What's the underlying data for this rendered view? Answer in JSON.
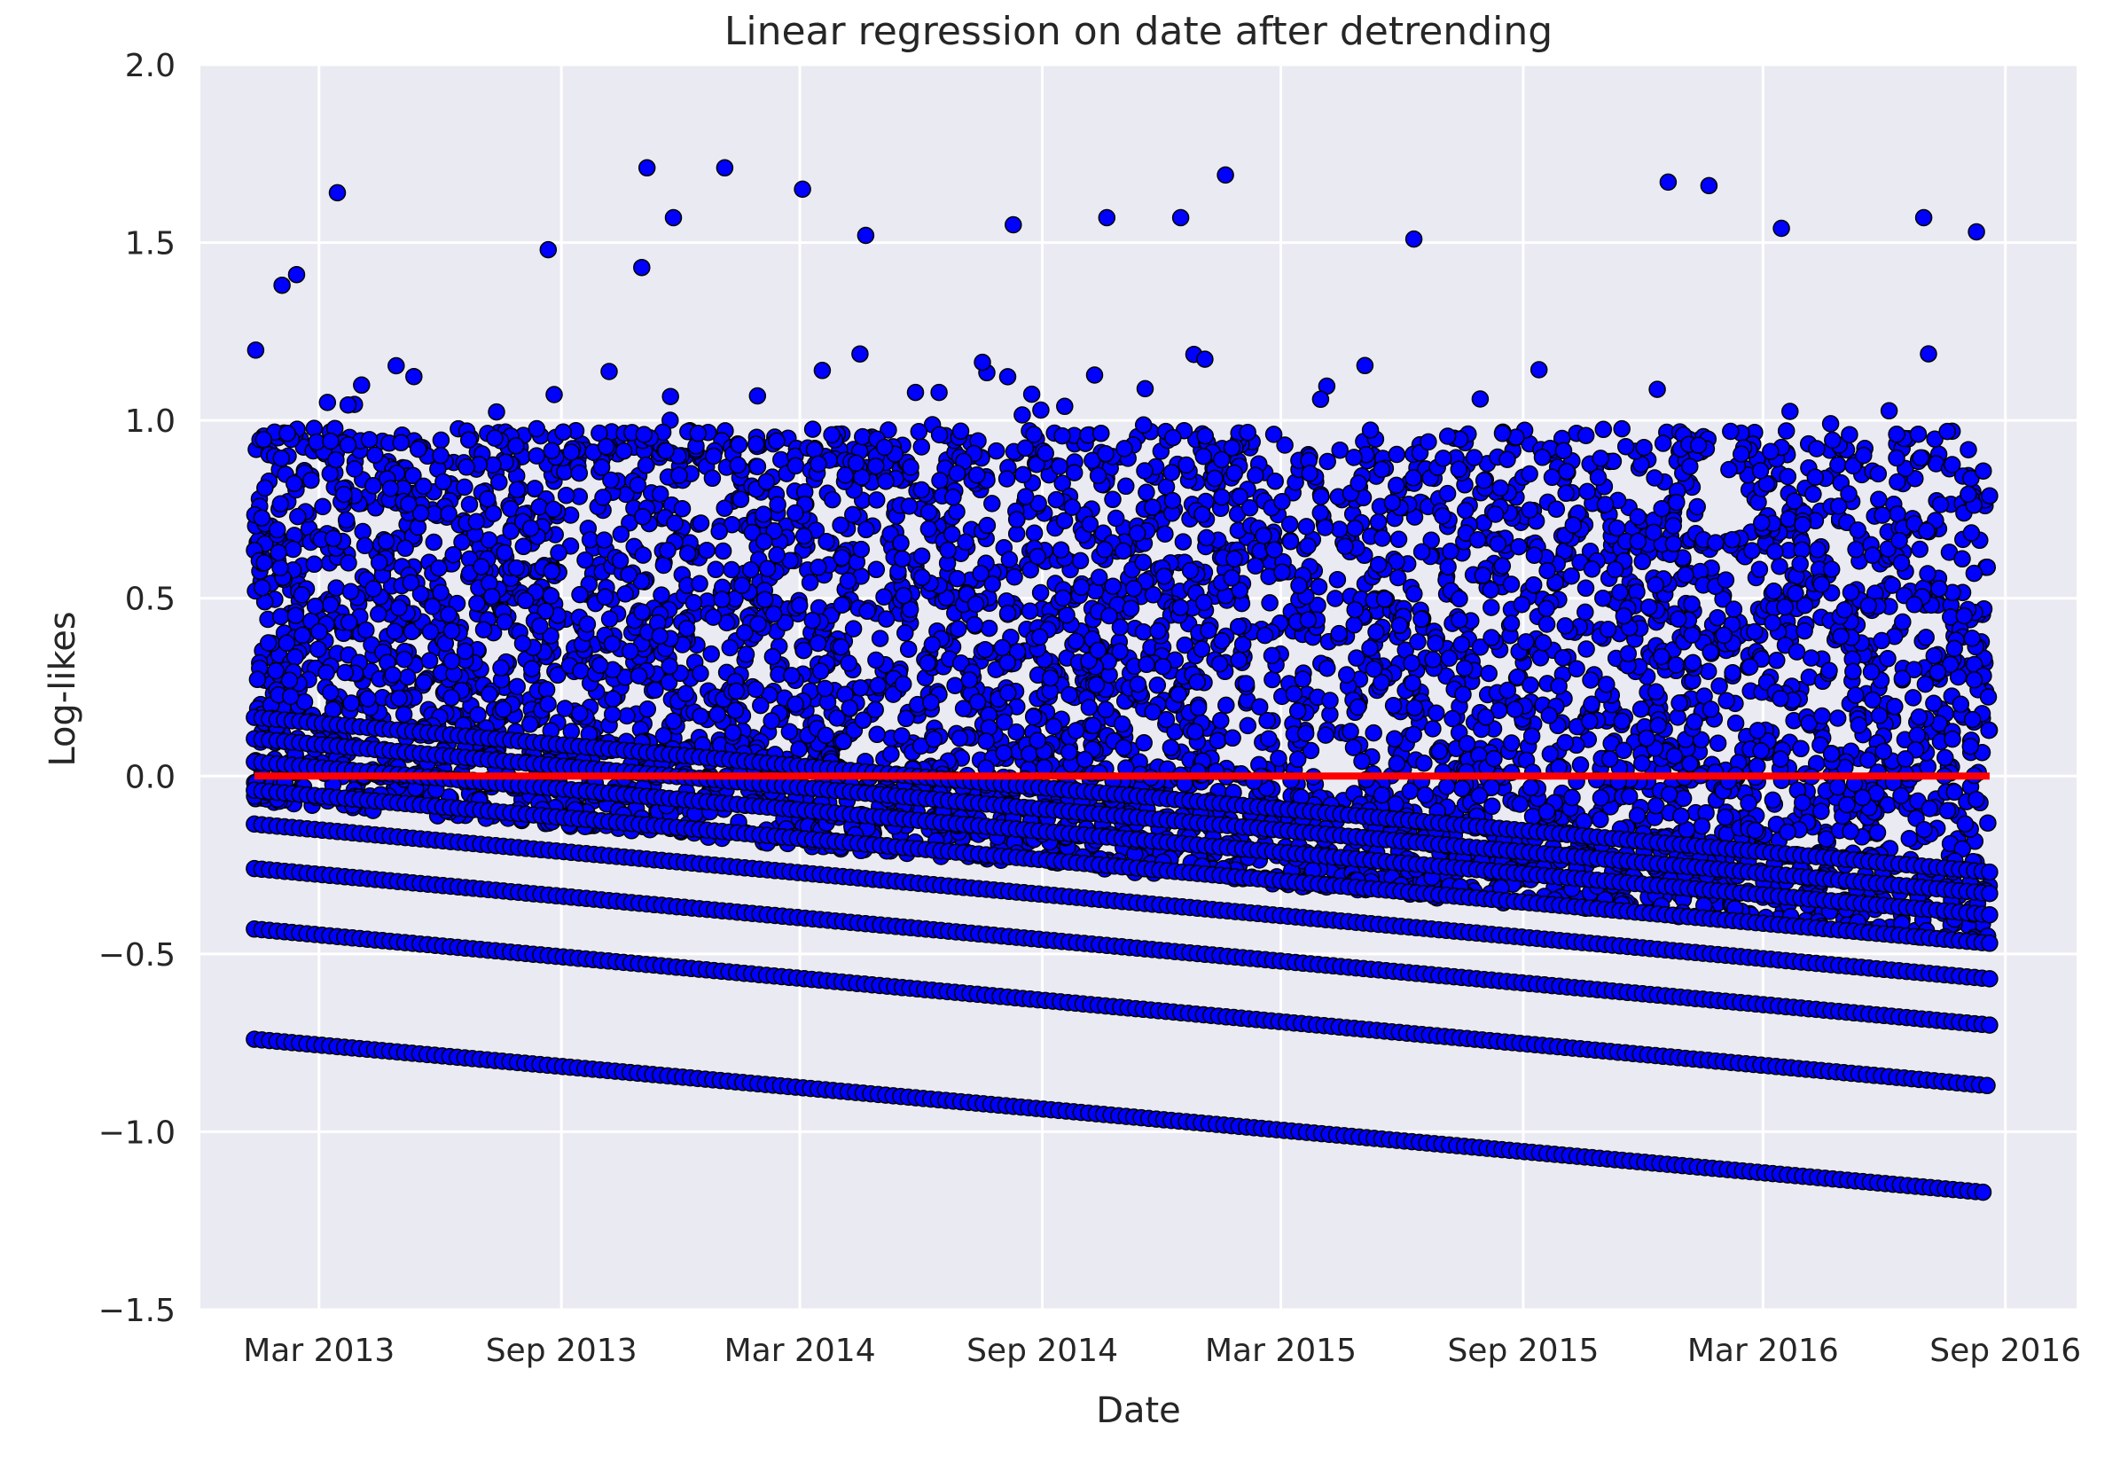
{
  "chart_data": {
    "type": "scatter",
    "title": "Linear regression on date after detrending",
    "xlabel": "Date",
    "ylabel": "Log-likes",
    "xlim": [
      "2012-12-01",
      "2016-10-25"
    ],
    "ylim": [
      -1.5,
      2.0
    ],
    "grid": true,
    "legend": "none",
    "x_ticks": [
      {
        "date": "2013-03-01",
        "label": "Mar 2013"
      },
      {
        "date": "2013-09-01",
        "label": "Sep 2013"
      },
      {
        "date": "2014-03-01",
        "label": "Mar 2014"
      },
      {
        "date": "2014-09-01",
        "label": "Sep 2014"
      },
      {
        "date": "2015-03-01",
        "label": "Mar 2015"
      },
      {
        "date": "2015-09-01",
        "label": "Sep 2015"
      },
      {
        "date": "2016-03-01",
        "label": "Mar 2016"
      },
      {
        "date": "2016-09-01",
        "label": "Sep 2016"
      }
    ],
    "y_ticks": [
      {
        "value": 2.0,
        "label": "2.0"
      },
      {
        "value": 1.5,
        "label": "1.5"
      },
      {
        "value": 1.0,
        "label": "1.0"
      },
      {
        "value": 0.5,
        "label": "0.5"
      },
      {
        "value": 0.0,
        "label": "0.0"
      },
      {
        "value": -0.5,
        "label": "−0.5"
      },
      {
        "value": -1.0,
        "label": "−1.0"
      },
      {
        "value": -1.5,
        "label": "−1.5"
      }
    ],
    "x_range": [
      "2013-01-11",
      "2016-08-20"
    ],
    "series": [
      {
        "kind": "scatter",
        "color": "#0000ff",
        "edge_color": "#000000",
        "banded_lines": [
          {
            "start": [
              "2013-01-11",
              -0.74
            ],
            "end": [
              "2016-08-15",
              -1.17
            ]
          },
          {
            "start": [
              "2013-01-11",
              -0.43
            ],
            "end": [
              "2016-08-18",
              -0.87
            ]
          },
          {
            "start": [
              "2013-01-11",
              -0.26
            ],
            "end": [
              "2016-08-20",
              -0.7
            ]
          },
          {
            "start": [
              "2013-01-11",
              -0.135
            ],
            "end": [
              "2016-08-20",
              -0.57
            ]
          },
          {
            "start": [
              "2013-01-11",
              -0.04
            ],
            "end": [
              "2016-08-20",
              -0.47
            ]
          },
          {
            "start": [
              "2013-01-11",
              0.04
            ],
            "end": [
              "2016-08-20",
              -0.39
            ]
          },
          {
            "start": [
              "2013-01-11",
              0.105
            ],
            "end": [
              "2016-08-20",
              -0.33
            ]
          },
          {
            "start": [
              "2013-01-11",
              0.165
            ],
            "end": [
              "2016-08-20",
              -0.27
            ]
          }
        ],
        "dense_cloud": {
          "lower_bound": -0.25,
          "upper_bound": 1.0
        },
        "outliers": [
          [
            "2013-02-01",
            1.38
          ],
          [
            "2013-02-12",
            1.41
          ],
          [
            "2013-03-15",
            1.64
          ],
          [
            "2013-08-22",
            1.48
          ],
          [
            "2013-11-01",
            1.43
          ],
          [
            "2013-11-05",
            1.71
          ],
          [
            "2013-11-25",
            1.57
          ],
          [
            "2014-01-03",
            1.71
          ],
          [
            "2014-03-03",
            1.65
          ],
          [
            "2014-04-20",
            1.52
          ],
          [
            "2014-08-10",
            1.55
          ],
          [
            "2014-10-20",
            1.57
          ],
          [
            "2014-12-15",
            1.57
          ],
          [
            "2015-01-18",
            1.69
          ],
          [
            "2015-06-10",
            1.51
          ],
          [
            "2015-12-20",
            1.67
          ],
          [
            "2016-01-20",
            1.66
          ],
          [
            "2016-03-15",
            1.54
          ],
          [
            "2016-07-01",
            1.57
          ],
          [
            "2016-08-10",
            1.53
          ]
        ]
      },
      {
        "kind": "line",
        "color": "#ff0000",
        "points": [
          [
            "2013-01-11",
            0.0
          ],
          [
            "2016-08-20",
            0.0
          ]
        ]
      }
    ]
  }
}
